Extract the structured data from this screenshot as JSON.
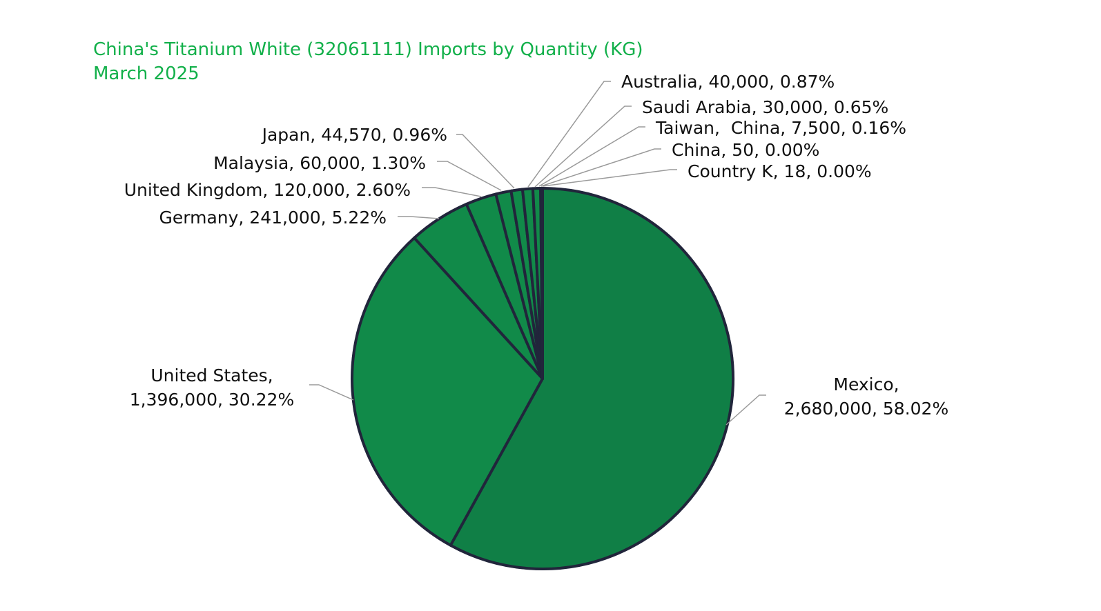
{
  "chart_data": {
    "type": "pie",
    "title": "China's Titanium White (32061111) Imports by Quantity (KG)",
    "subtitle": "March 2025",
    "unit": "KG",
    "slices": [
      {
        "label": "Mexico,",
        "label2": "2,680,000, 58.02%",
        "value": 2680000,
        "percent": 58.02,
        "color": "#107f46"
      },
      {
        "label": "United States,",
        "label2": "1,396,000, 30.22%",
        "value": 1396000,
        "percent": 30.22,
        "color": "#118a49"
      },
      {
        "label": "Germany, 241,000, 5.22%",
        "value": 241000,
        "percent": 5.22,
        "color": "#118a49"
      },
      {
        "label": "United Kingdom, 120,000, 2.60%",
        "value": 120000,
        "percent": 2.6,
        "color": "#118a49"
      },
      {
        "label": "Malaysia, 60,000, 1.30%",
        "value": 60000,
        "percent": 1.3,
        "color": "#118a49"
      },
      {
        "label": "Japan, 44,570, 0.96%",
        "value": 44570,
        "percent": 0.96,
        "color": "#118a49"
      },
      {
        "label": "Australia, 40,000, 0.87%",
        "value": 40000,
        "percent": 0.87,
        "color": "#118a49"
      },
      {
        "label": "Saudi Arabia, 30,000, 0.65%",
        "value": 30000,
        "percent": 0.65,
        "color": "#118a49"
      },
      {
        "label": "Taiwan,  China, 7,500, 0.16%",
        "value": 7500,
        "percent": 0.16,
        "color": "#118a49"
      },
      {
        "label": "China, 50, 0.00%",
        "value": 50,
        "percent": 0.0,
        "color": "#118a49"
      },
      {
        "label": "Country K, 18, 0.00%",
        "value": 18,
        "percent": 0.0,
        "color": "#118a49"
      }
    ],
    "colors": {
      "title": "#12b04a",
      "outline": "#21253b",
      "leader": "#9a9a9a"
    }
  }
}
